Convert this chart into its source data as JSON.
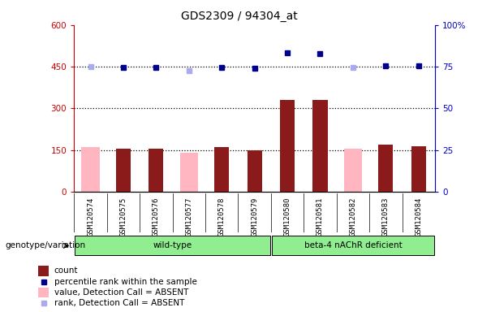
{
  "title": "GDS2309 / 94304_at",
  "samples": [
    "GSM120574",
    "GSM120575",
    "GSM120576",
    "GSM120577",
    "GSM120578",
    "GSM120579",
    "GSM120580",
    "GSM120581",
    "GSM120582",
    "GSM120583",
    "GSM120584"
  ],
  "count_values": [
    0,
    155,
    155,
    0,
    160,
    150,
    330,
    330,
    0,
    170,
    165
  ],
  "absent_value_bars": [
    160,
    0,
    0,
    140,
    0,
    0,
    0,
    0,
    155,
    0,
    0
  ],
  "absent_flags": [
    true,
    false,
    false,
    true,
    false,
    false,
    false,
    false,
    true,
    false,
    false
  ],
  "rank_values": [
    450,
    447,
    447,
    0,
    447,
    443,
    500,
    497,
    0,
    453,
    453
  ],
  "absent_rank_values": [
    451,
    0,
    0,
    437,
    0,
    0,
    0,
    0,
    447,
    0,
    0
  ],
  "group_label_wt": "wild-type",
  "group_label_mut": "beta-4 nAChR deficient",
  "ylim_left": [
    0,
    600
  ],
  "yticks_left": [
    0,
    150,
    300,
    450,
    600
  ],
  "yticks_right": [
    0,
    25,
    50,
    75,
    100
  ],
  "bar_color_red": "#8B1A1A",
  "bar_color_pink": "#FFB6C1",
  "dot_color_blue": "#00008B",
  "dot_color_lightblue": "#AAAAEE",
  "tick_color_left": "#CC0000",
  "tick_color_right": "#0000CC",
  "legend_items": [
    {
      "label": "count",
      "color": "#8B1A1A",
      "is_bar": true
    },
    {
      "label": "percentile rank within the sample",
      "color": "#00008B",
      "is_bar": false
    },
    {
      "label": "value, Detection Call = ABSENT",
      "color": "#FFB6C1",
      "is_bar": true
    },
    {
      "label": "rank, Detection Call = ABSENT",
      "color": "#AAAAEE",
      "is_bar": false
    }
  ]
}
